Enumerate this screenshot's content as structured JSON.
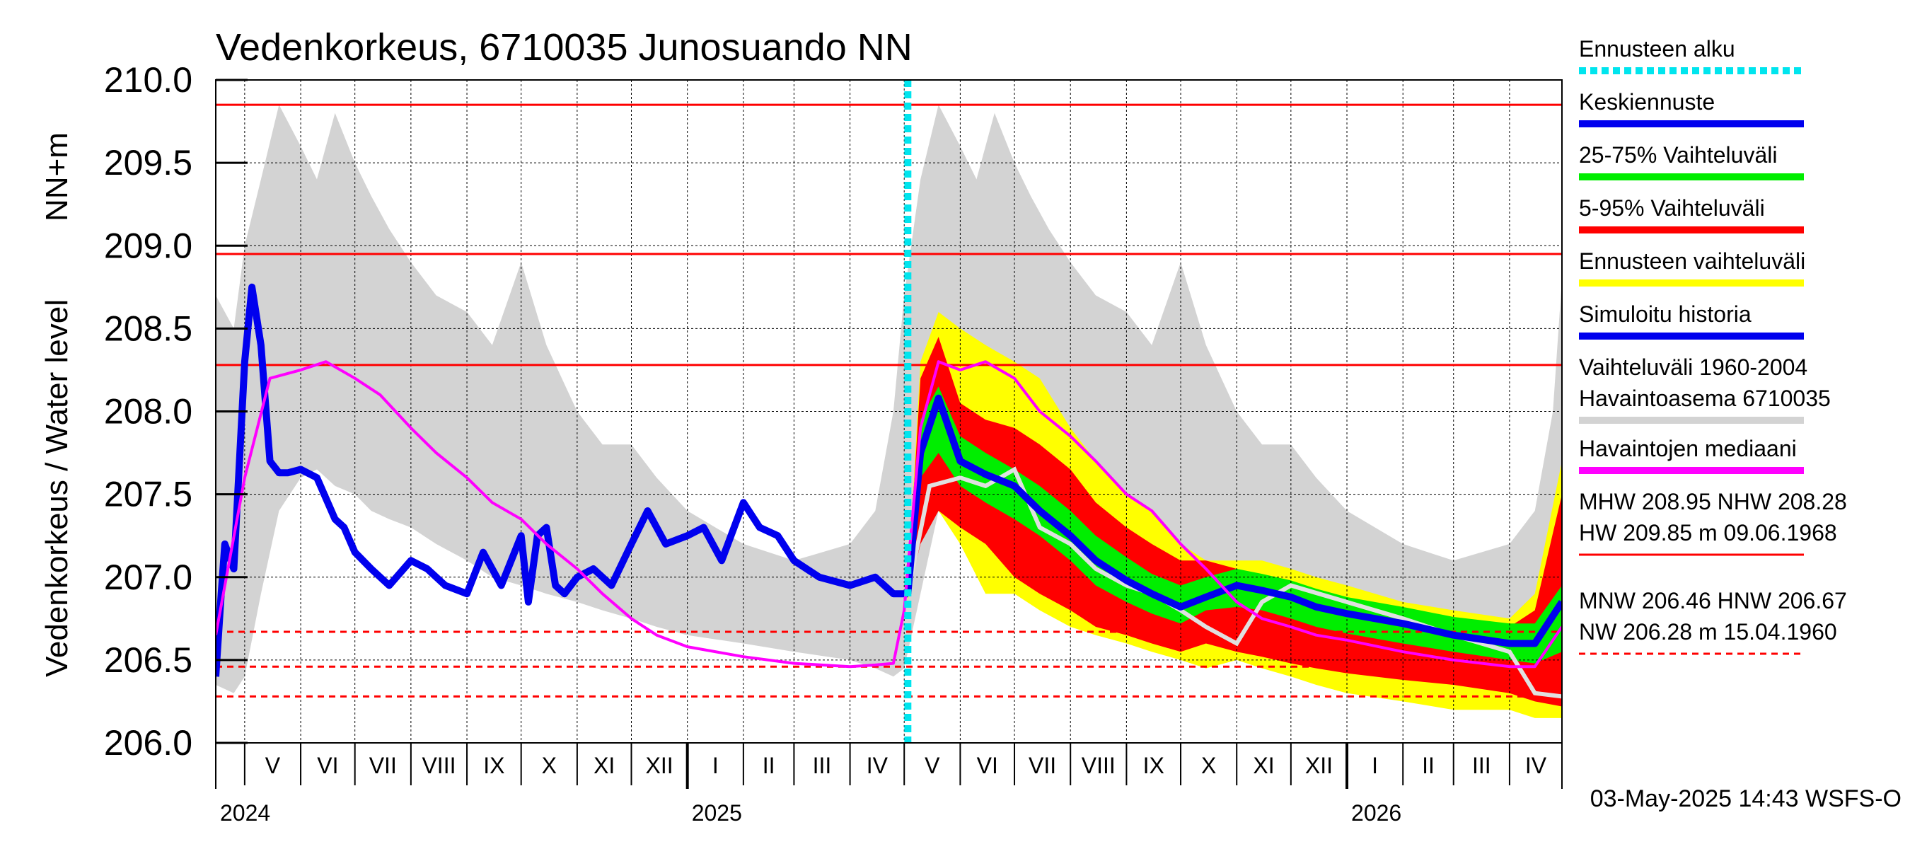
{
  "chart_data": {
    "type": "line",
    "title": "Vedenkorkeus, 6710035 Junosuando NN",
    "ylabel": "Vedenkorkeus / Water level   NN+m",
    "ylim": [
      206.0,
      210.0
    ],
    "yticks": [
      {
        "value": 210.0,
        "label": "210.0"
      },
      {
        "value": 209.5,
        "label": "209.5"
      },
      {
        "value": 209.0,
        "label": "209.0"
      },
      {
        "value": 208.5,
        "label": "208.5"
      },
      {
        "value": 208.0,
        "label": "208.0"
      },
      {
        "value": 207.5,
        "label": "207.5"
      },
      {
        "value": 207.0,
        "label": "207.0"
      },
      {
        "value": 206.5,
        "label": "206.5"
      },
      {
        "value": 206.0,
        "label": "206.0"
      }
    ],
    "xlim": [
      "2024-04-15",
      "2026-04-30"
    ],
    "month_ticks": [
      {
        "date": "2024-05-01",
        "label": "V"
      },
      {
        "date": "2024-06-01",
        "label": "VI"
      },
      {
        "date": "2024-07-01",
        "label": "VII"
      },
      {
        "date": "2024-08-01",
        "label": "VIII"
      },
      {
        "date": "2024-09-01",
        "label": "IX"
      },
      {
        "date": "2024-10-01",
        "label": "X"
      },
      {
        "date": "2024-11-01",
        "label": "XI"
      },
      {
        "date": "2024-12-01",
        "label": "XII"
      },
      {
        "date": "2025-01-01",
        "label": "I"
      },
      {
        "date": "2025-02-01",
        "label": "II"
      },
      {
        "date": "2025-03-01",
        "label": "III"
      },
      {
        "date": "2025-04-01",
        "label": "IV"
      },
      {
        "date": "2025-05-01",
        "label": "V"
      },
      {
        "date": "2025-06-01",
        "label": "VI"
      },
      {
        "date": "2025-07-01",
        "label": "VII"
      },
      {
        "date": "2025-08-01",
        "label": "VIII"
      },
      {
        "date": "2025-09-01",
        "label": "IX"
      },
      {
        "date": "2025-10-01",
        "label": "X"
      },
      {
        "date": "2025-11-01",
        "label": "XI"
      },
      {
        "date": "2025-12-01",
        "label": "XII"
      },
      {
        "date": "2026-01-01",
        "label": "I"
      },
      {
        "date": "2026-02-01",
        "label": "II"
      },
      {
        "date": "2026-03-01",
        "label": "III"
      },
      {
        "date": "2026-04-01",
        "label": "IV"
      }
    ],
    "year_labels": [
      {
        "date": "2024-04-15",
        "label": "2024"
      },
      {
        "date": "2025-01-01",
        "label": "2025"
      },
      {
        "date": "2026-01-01",
        "label": "2026"
      }
    ],
    "forecast_start": "2025-05-03",
    "reference_lines": [
      {
        "name": "HW",
        "value": 209.85,
        "style": "solid"
      },
      {
        "name": "MHW",
        "value": 208.95,
        "style": "solid"
      },
      {
        "name": "NHW",
        "value": 208.28,
        "style": "solid"
      },
      {
        "name": "HNW",
        "value": 206.67,
        "style": "dashed"
      },
      {
        "name": "MNW",
        "value": 206.46,
        "style": "dashed"
      },
      {
        "name": "NW",
        "value": 206.28,
        "style": "dashed"
      }
    ],
    "series": [
      {
        "name": "Vaihteluväli 1960-2004 Havaintoasema 6710035",
        "kind": "band",
        "color": "#d3d3d3",
        "x": [
          "2024-04-15",
          "2024-04-25",
          "2024-05-01",
          "2024-05-10",
          "2024-05-20",
          "2024-06-01",
          "2024-06-10",
          "2024-06-20",
          "2024-07-01",
          "2024-07-10",
          "2024-07-20",
          "2024-08-01",
          "2024-08-15",
          "2024-09-01",
          "2024-09-15",
          "2024-10-01",
          "2024-10-15",
          "2024-11-01",
          "2024-11-15",
          "2024-12-01",
          "2024-12-15",
          "2025-01-01",
          "2025-02-01",
          "2025-03-01",
          "2025-04-01",
          "2025-04-15",
          "2025-04-25",
          "2025-05-01",
          "2025-05-10",
          "2025-05-20",
          "2025-06-01",
          "2025-06-10",
          "2025-06-20",
          "2025-07-01",
          "2025-07-10",
          "2025-07-20",
          "2025-08-01",
          "2025-08-15",
          "2025-09-01",
          "2025-09-15",
          "2025-10-01",
          "2025-10-15",
          "2025-11-01",
          "2025-11-15",
          "2025-12-01",
          "2025-12-15",
          "2026-01-01",
          "2026-02-01",
          "2026-03-01",
          "2026-04-01",
          "2026-04-15",
          "2026-04-25",
          "2026-04-30"
        ],
        "low": [
          206.35,
          206.3,
          206.4,
          206.9,
          207.4,
          207.6,
          207.65,
          207.55,
          207.5,
          207.4,
          207.35,
          207.3,
          207.2,
          207.1,
          207.0,
          206.95,
          206.9,
          206.85,
          206.8,
          206.75,
          206.7,
          206.65,
          206.6,
          206.55,
          206.5,
          206.45,
          206.4,
          206.45,
          206.9,
          207.4,
          207.6,
          207.65,
          207.55,
          207.5,
          207.4,
          207.35,
          207.3,
          207.2,
          207.1,
          207.0,
          206.95,
          206.9,
          206.85,
          206.8,
          206.75,
          206.7,
          206.65,
          206.6,
          206.55,
          206.5,
          206.45,
          206.4,
          206.4
        ],
        "high": [
          208.7,
          208.5,
          209.0,
          209.4,
          209.85,
          209.6,
          209.4,
          209.8,
          209.5,
          209.3,
          209.1,
          208.9,
          208.7,
          208.6,
          208.4,
          208.9,
          208.4,
          208.0,
          207.8,
          207.8,
          207.6,
          207.4,
          207.2,
          207.1,
          207.2,
          207.4,
          208.0,
          208.7,
          209.4,
          209.85,
          209.6,
          209.4,
          209.8,
          209.5,
          209.3,
          209.1,
          208.9,
          208.7,
          208.6,
          208.4,
          208.9,
          208.4,
          208.0,
          207.8,
          207.8,
          207.6,
          207.4,
          207.2,
          207.1,
          207.2,
          207.4,
          208.0,
          208.8
        ]
      },
      {
        "name": "Ennusteen vaihteluväli",
        "kind": "band",
        "color": "#ffff00",
        "x": [
          "2025-05-03",
          "2025-05-10",
          "2025-05-20",
          "2025-06-01",
          "2025-06-15",
          "2025-07-01",
          "2025-07-15",
          "2025-08-01",
          "2025-08-15",
          "2025-09-01",
          "2025-09-15",
          "2025-10-01",
          "2025-10-15",
          "2025-11-01",
          "2025-11-15",
          "2025-12-01",
          "2025-12-15",
          "2026-01-01",
          "2026-02-01",
          "2026-03-01",
          "2026-04-01",
          "2026-04-15",
          "2026-04-30"
        ],
        "low": [
          206.85,
          207.3,
          207.4,
          207.2,
          206.9,
          206.9,
          206.8,
          206.7,
          206.65,
          206.6,
          206.55,
          206.5,
          206.45,
          206.5,
          206.45,
          206.4,
          206.35,
          206.3,
          206.25,
          206.2,
          206.2,
          206.15,
          206.15
        ],
        "high": [
          206.95,
          208.3,
          208.6,
          208.5,
          208.4,
          208.3,
          208.2,
          207.9,
          207.7,
          207.5,
          207.4,
          207.2,
          207.1,
          207.1,
          207.1,
          207.05,
          207.0,
          206.95,
          206.85,
          206.8,
          206.75,
          206.9,
          207.7
        ]
      },
      {
        "name": "5-95% Vaihteluväli",
        "kind": "band",
        "color": "#ff0000",
        "x": [
          "2025-05-03",
          "2025-05-10",
          "2025-05-20",
          "2025-06-01",
          "2025-06-15",
          "2025-07-01",
          "2025-07-15",
          "2025-08-01",
          "2025-08-15",
          "2025-09-01",
          "2025-09-15",
          "2025-10-01",
          "2025-10-15",
          "2025-11-01",
          "2025-11-15",
          "2025-12-01",
          "2025-12-15",
          "2026-01-01",
          "2026-02-01",
          "2026-03-01",
          "2026-04-01",
          "2026-04-15",
          "2026-04-30"
        ],
        "low": [
          206.88,
          207.2,
          207.4,
          207.3,
          207.2,
          207.0,
          206.9,
          206.8,
          206.7,
          206.65,
          206.6,
          206.55,
          206.6,
          206.55,
          206.52,
          206.48,
          206.45,
          206.42,
          206.38,
          206.35,
          206.3,
          206.25,
          206.22
        ],
        "high": [
          206.92,
          208.2,
          208.45,
          208.05,
          207.95,
          207.9,
          207.8,
          207.65,
          207.45,
          207.3,
          207.2,
          207.1,
          207.1,
          207.05,
          207.0,
          206.95,
          206.9,
          206.85,
          206.8,
          206.75,
          206.7,
          206.8,
          207.5
        ]
      },
      {
        "name": "25-75% Vaihteluväli",
        "kind": "band",
        "color": "#00ee00",
        "x": [
          "2025-05-03",
          "2025-05-10",
          "2025-05-20",
          "2025-06-01",
          "2025-06-15",
          "2025-07-01",
          "2025-07-15",
          "2025-08-01",
          "2025-08-15",
          "2025-09-01",
          "2025-09-15",
          "2025-10-01",
          "2025-10-15",
          "2025-11-01",
          "2025-11-15",
          "2025-12-01",
          "2025-12-15",
          "2026-01-01",
          "2026-02-01",
          "2026-03-01",
          "2026-04-01",
          "2026-04-15",
          "2026-04-30"
        ],
        "low": [
          206.89,
          207.6,
          207.75,
          207.55,
          207.45,
          207.35,
          207.25,
          207.1,
          206.95,
          206.85,
          206.78,
          206.72,
          206.8,
          206.82,
          206.8,
          206.75,
          206.7,
          206.66,
          206.6,
          206.55,
          206.5,
          206.48,
          206.55
        ],
        "high": [
          206.91,
          207.95,
          208.15,
          207.85,
          207.75,
          207.65,
          207.55,
          207.4,
          207.25,
          207.12,
          207.02,
          206.95,
          207.0,
          207.05,
          207.02,
          206.98,
          206.93,
          206.88,
          206.82,
          206.76,
          206.72,
          206.72,
          206.95
        ]
      },
      {
        "name": "Simuloitu historia",
        "kind": "line",
        "color": "#0000ee",
        "x": [
          "2024-04-15",
          "2024-04-18",
          "2024-04-20",
          "2024-04-25",
          "2024-05-01",
          "2024-05-05",
          "2024-05-10",
          "2024-05-15",
          "2024-05-20",
          "2024-05-25",
          "2024-06-01",
          "2024-06-10",
          "2024-06-20",
          "2024-06-25",
          "2024-07-01",
          "2024-07-10",
          "2024-07-20",
          "2024-08-01",
          "2024-08-10",
          "2024-08-20",
          "2024-09-01",
          "2024-09-10",
          "2024-09-20",
          "2024-10-01",
          "2024-10-05",
          "2024-10-10",
          "2024-10-15",
          "2024-10-20",
          "2024-10-25",
          "2024-11-01",
          "2024-11-10",
          "2024-11-20",
          "2024-12-01",
          "2024-12-10",
          "2024-12-20",
          "2025-01-01",
          "2025-01-10",
          "2025-01-20",
          "2025-02-01",
          "2025-02-10",
          "2025-02-20",
          "2025-03-01",
          "2025-03-15",
          "2025-04-01",
          "2025-04-15",
          "2025-04-25",
          "2025-05-03"
        ],
        "y": [
          206.4,
          206.9,
          207.2,
          207.05,
          208.3,
          208.75,
          208.4,
          207.7,
          207.63,
          207.63,
          207.65,
          207.6,
          207.35,
          207.3,
          207.15,
          207.05,
          206.95,
          207.1,
          207.05,
          206.95,
          206.9,
          207.15,
          206.95,
          207.25,
          206.85,
          207.25,
          207.3,
          206.95,
          206.9,
          207.0,
          207.05,
          206.95,
          207.2,
          207.4,
          207.2,
          207.25,
          207.3,
          207.1,
          207.45,
          207.3,
          207.25,
          207.1,
          207.0,
          206.95,
          207.0,
          206.9,
          206.9
        ]
      },
      {
        "name": "Keskiennuste",
        "kind": "line",
        "color": "#0000ee",
        "x": [
          "2025-05-03",
          "2025-05-10",
          "2025-05-20",
          "2025-06-01",
          "2025-06-15",
          "2025-07-01",
          "2025-07-15",
          "2025-08-01",
          "2025-08-15",
          "2025-09-01",
          "2025-09-15",
          "2025-10-01",
          "2025-10-15",
          "2025-11-01",
          "2025-11-15",
          "2025-12-01",
          "2025-12-15",
          "2026-01-01",
          "2026-02-01",
          "2026-03-01",
          "2026-04-01",
          "2026-04-15",
          "2026-04-30"
        ],
        "y": [
          206.9,
          207.75,
          208.08,
          207.7,
          207.62,
          207.55,
          207.4,
          207.25,
          207.1,
          206.98,
          206.9,
          206.82,
          206.88,
          206.95,
          206.92,
          206.88,
          206.82,
          206.78,
          206.72,
          206.65,
          206.6,
          206.6,
          206.85
        ]
      },
      {
        "name": "Havaintojen mediaani",
        "kind": "line",
        "color": "#ff00ff",
        "x": [
          "2024-04-15",
          "2024-05-01",
          "2024-05-15",
          "2024-06-01",
          "2024-06-15",
          "2024-07-01",
          "2024-07-15",
          "2024-08-01",
          "2024-08-15",
          "2024-09-01",
          "2024-09-15",
          "2024-10-01",
          "2024-10-15",
          "2024-11-01",
          "2024-11-15",
          "2024-12-01",
          "2024-12-15",
          "2025-01-01",
          "2025-02-01",
          "2025-03-01",
          "2025-04-01",
          "2025-04-15",
          "2025-04-25",
          "2025-05-01",
          "2025-05-10",
          "2025-05-20",
          "2025-06-01",
          "2025-06-15",
          "2025-07-01",
          "2025-07-15",
          "2025-08-01",
          "2025-08-15",
          "2025-09-01",
          "2025-09-15",
          "2025-10-01",
          "2025-10-15",
          "2025-11-01",
          "2025-11-15",
          "2025-12-01",
          "2025-12-15",
          "2026-01-01",
          "2026-02-01",
          "2026-03-01",
          "2026-04-01",
          "2026-04-15",
          "2026-04-30"
        ],
        "y": [
          206.65,
          207.6,
          208.2,
          208.25,
          208.3,
          208.2,
          208.1,
          207.9,
          207.75,
          207.6,
          207.45,
          207.35,
          207.2,
          207.05,
          206.9,
          206.75,
          206.65,
          206.58,
          206.52,
          206.48,
          206.46,
          206.47,
          206.48,
          206.8,
          207.9,
          208.3,
          208.25,
          208.3,
          208.2,
          208.0,
          207.85,
          207.7,
          207.5,
          207.4,
          207.2,
          207.05,
          206.85,
          206.75,
          206.7,
          206.65,
          206.62,
          206.55,
          206.5,
          206.46,
          206.46,
          206.7
        ]
      }
    ],
    "extra_lines": [
      {
        "name": "simulated-history-light",
        "color": "#e0e0e0",
        "x": [
          "2025-05-03",
          "2025-05-15",
          "2025-06-01",
          "2025-06-15",
          "2025-07-01",
          "2025-07-15",
          "2025-08-01",
          "2025-08-15",
          "2025-09-01",
          "2025-09-15",
          "2025-10-01",
          "2025-10-15",
          "2025-11-01",
          "2025-11-15",
          "2025-12-01",
          "2026-01-01",
          "2026-02-01",
          "2026-03-01",
          "2026-04-01",
          "2026-04-15",
          "2026-04-30"
        ],
        "y": [
          206.9,
          207.55,
          207.6,
          207.55,
          207.65,
          207.3,
          207.2,
          207.05,
          206.95,
          206.9,
          206.8,
          206.7,
          206.6,
          206.85,
          206.95,
          206.85,
          206.75,
          206.65,
          206.55,
          206.3,
          206.28
        ]
      }
    ],
    "legend_position": "right",
    "legend": [
      {
        "label": "Ennusteen alku",
        "color": "#00e5ee",
        "style": "dotted"
      },
      {
        "label": "Keskiennuste",
        "color": "#0000ee",
        "style": "solid"
      },
      {
        "label": "25-75% Vaihteluväli",
        "color": "#00ee00",
        "style": "solid"
      },
      {
        "label": "5-95% Vaihteluväli",
        "color": "#ff0000",
        "style": "solid"
      },
      {
        "label": "Ennusteen vaihteluväli",
        "color": "#ffff00",
        "style": "solid"
      },
      {
        "label": "Simuloitu historia",
        "color": "#0000ee",
        "style": "solid"
      },
      {
        "label": "Vaihteluväli 1960-2004\n Havaintoasema 6710035",
        "color": "#d3d3d3",
        "style": "solid"
      },
      {
        "label": "Havaintojen mediaani",
        "color": "#ff00ff",
        "style": "solid"
      }
    ],
    "stats_text": [
      {
        "line1": "MHW 208.95 NHW 208.28",
        "line2": "HW 209.85 m 09.06.1968",
        "style": "solid"
      },
      {
        "line1": "MNW 206.46 HNW 206.67",
        "line2": "NW 206.28 m 15.04.1960",
        "style": "dashed"
      }
    ],
    "footer": "03-May-2025 14:43 WSFS-O",
    "grid": true
  }
}
